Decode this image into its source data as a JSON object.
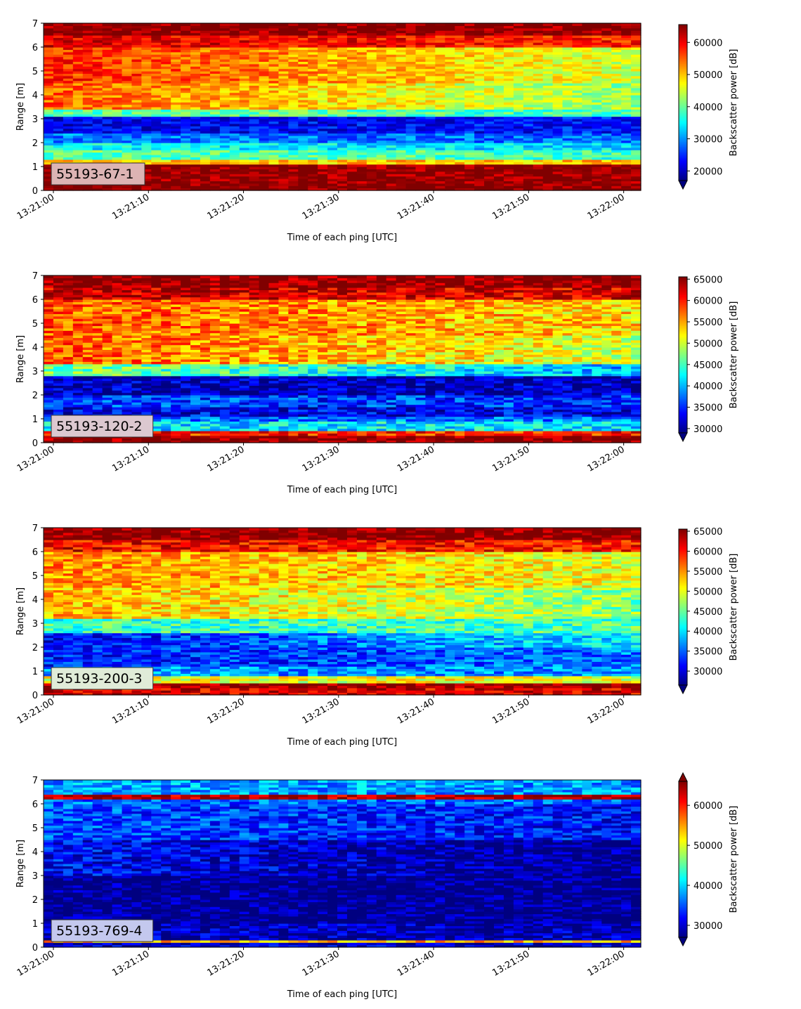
{
  "chart_data": [
    {
      "type": "heatmap",
      "label": "55193-67-1",
      "label_bg": "#dcb4b4",
      "xlabel": "Time of each ping [UTC]",
      "ylabel": "Range [m]",
      "xticks": [
        "13:21:00",
        "13:21:10",
        "13:21:20",
        "13:21:30",
        "13:21:40",
        "13:21:50",
        "13:22:00"
      ],
      "xlim": [
        "13:21:00",
        "13:22:00"
      ],
      "ylim": [
        0,
        7
      ],
      "yticks": [
        0,
        1,
        2,
        3,
        4,
        5,
        6,
        7
      ],
      "colorbar": {
        "label": "Backscatter power [dB]",
        "min": 17000,
        "max": 65535,
        "ticks": [
          20000,
          30000,
          40000,
          50000,
          60000
        ],
        "extend": "min"
      },
      "colormap": "jet",
      "profile": [
        {
          "range": [
            0.0,
            0.3
          ],
          "start": 65535,
          "end": 65535
        },
        {
          "range": [
            0.3,
            1.1
          ],
          "start": 65000,
          "end": 65000
        },
        {
          "range": [
            1.1,
            1.3
          ],
          "start": 50000,
          "end": 50000
        },
        {
          "range": [
            1.3,
            1.7
          ],
          "start": 40000,
          "end": 38000
        },
        {
          "range": [
            1.7,
            2.0
          ],
          "start": 35000,
          "end": 33000
        },
        {
          "range": [
            2.0,
            2.4
          ],
          "start": 29000,
          "end": 28000
        },
        {
          "range": [
            2.4,
            3.1
          ],
          "start": 22000,
          "end": 24000
        },
        {
          "range": [
            3.1,
            3.4
          ],
          "start": 40000,
          "end": 38000
        },
        {
          "range": [
            3.4,
            4.5
          ],
          "start": 55000,
          "end": 42000
        },
        {
          "range": [
            4.5,
            6.0
          ],
          "start": 58000,
          "end": 45000
        },
        {
          "range": [
            6.0,
            6.5
          ],
          "start": 61000,
          "end": 58000
        },
        {
          "range": [
            6.5,
            7.0
          ],
          "start": 65000,
          "end": 65000
        }
      ]
    },
    {
      "type": "heatmap",
      "label": "55193-120-2",
      "label_bg": "#dcc8d0",
      "xlabel": "Time of each ping [UTC]",
      "ylabel": "Range [m]",
      "xticks": [
        "13:21:00",
        "13:21:10",
        "13:21:20",
        "13:21:30",
        "13:21:40",
        "13:21:50",
        "13:22:00"
      ],
      "xlim": [
        "13:21:00",
        "13:22:00"
      ],
      "ylim": [
        0,
        7
      ],
      "yticks": [
        0,
        1,
        2,
        3,
        4,
        5,
        6,
        7
      ],
      "colorbar": {
        "label": "Backscatter power [dB]",
        "min": 29000,
        "max": 65535,
        "ticks": [
          30000,
          35000,
          40000,
          45000,
          50000,
          55000,
          60000,
          65000
        ],
        "extend": "min"
      },
      "colormap": "jet",
      "profile": [
        {
          "range": [
            0.0,
            0.3
          ],
          "start": 65535,
          "end": 65535
        },
        {
          "range": [
            0.3,
            0.5
          ],
          "start": 60000,
          "end": 60000
        },
        {
          "range": [
            0.5,
            0.9
          ],
          "start": 42000,
          "end": 42000
        },
        {
          "range": [
            0.9,
            1.1
          ],
          "start": 38000,
          "end": 38000
        },
        {
          "range": [
            1.1,
            1.5
          ],
          "start": 33000,
          "end": 33000
        },
        {
          "range": [
            1.5,
            2.0
          ],
          "start": 36000,
          "end": 35000
        },
        {
          "range": [
            2.0,
            2.8
          ],
          "start": 31000,
          "end": 31000
        },
        {
          "range": [
            2.8,
            3.3
          ],
          "start": 47000,
          "end": 40000
        },
        {
          "range": [
            3.3,
            4.5
          ],
          "start": 58000,
          "end": 50000
        },
        {
          "range": [
            4.5,
            6.0
          ],
          "start": 58000,
          "end": 53000
        },
        {
          "range": [
            6.0,
            6.5
          ],
          "start": 63000,
          "end": 62000
        },
        {
          "range": [
            6.5,
            7.0
          ],
          "start": 65535,
          "end": 65535
        }
      ]
    },
    {
      "type": "heatmap",
      "label": "55193-200-3",
      "label_bg": "#e0ecd8",
      "xlabel": "Time of each ping [UTC]",
      "ylabel": "Range [m]",
      "xticks": [
        "13:21:00",
        "13:21:10",
        "13:21:20",
        "13:21:30",
        "13:21:40",
        "13:21:50",
        "13:22:00"
      ],
      "xlim": [
        "13:21:00",
        "13:22:00"
      ],
      "ylim": [
        0,
        7
      ],
      "yticks": [
        0,
        1,
        2,
        3,
        4,
        5,
        6,
        7
      ],
      "colorbar": {
        "label": "Backscatter power [dB]",
        "min": 26500,
        "max": 65535,
        "ticks": [
          30000,
          35000,
          40000,
          45000,
          50000,
          55000,
          60000,
          65000
        ],
        "extend": "min"
      },
      "colormap": "jet",
      "profile": [
        {
          "range": [
            0.0,
            0.3
          ],
          "start": 62000,
          "end": 62000
        },
        {
          "range": [
            0.3,
            0.55
          ],
          "start": 65535,
          "end": 65535
        },
        {
          "range": [
            0.55,
            0.8
          ],
          "start": 50000,
          "end": 50000
        },
        {
          "range": [
            0.8,
            1.2
          ],
          "start": 37000,
          "end": 37000
        },
        {
          "range": [
            1.2,
            2.0
          ],
          "start": 32000,
          "end": 36000
        },
        {
          "range": [
            2.0,
            2.6
          ],
          "start": 31000,
          "end": 41000
        },
        {
          "range": [
            2.6,
            3.2
          ],
          "start": 43000,
          "end": 44000
        },
        {
          "range": [
            3.2,
            4.5
          ],
          "start": 54000,
          "end": 46000
        },
        {
          "range": [
            4.5,
            6.0
          ],
          "start": 55000,
          "end": 50000
        },
        {
          "range": [
            6.0,
            6.5
          ],
          "start": 61000,
          "end": 60000
        },
        {
          "range": [
            6.5,
            7.0
          ],
          "start": 65535,
          "end": 65535
        }
      ]
    },
    {
      "type": "heatmap",
      "label": "55193-769-4",
      "label_bg": "#c4c8ee",
      "xlabel": "Time of each ping [UTC]",
      "ylabel": "Range [m]",
      "xticks": [
        "13:21:00",
        "13:21:10",
        "13:21:20",
        "13:21:30",
        "13:21:40",
        "13:21:50",
        "13:22:00"
      ],
      "xlim": [
        "13:21:00",
        "13:22:00"
      ],
      "ylim": [
        0,
        7
      ],
      "yticks": [
        0,
        1,
        2,
        3,
        4,
        5,
        6,
        7
      ],
      "colorbar": {
        "label": "Backscatter power [dB]",
        "min": 27000,
        "max": 66000,
        "ticks": [
          30000,
          40000,
          50000,
          60000
        ],
        "extend": "both"
      },
      "colormap": "jet",
      "profile": [
        {
          "range": [
            0.0,
            0.2
          ],
          "start": 30000,
          "end": 30000
        },
        {
          "range": [
            0.2,
            0.3
          ],
          "start": 54000,
          "end": 54000
        },
        {
          "range": [
            0.3,
            1.0
          ],
          "start": 29000,
          "end": 29000
        },
        {
          "range": [
            1.0,
            3.0
          ],
          "start": 27500,
          "end": 27000
        },
        {
          "range": [
            3.0,
            4.5
          ],
          "start": 32000,
          "end": 27000
        },
        {
          "range": [
            4.5,
            6.0
          ],
          "start": 35000,
          "end": 32000
        },
        {
          "range": [
            6.0,
            6.25
          ],
          "start": 36000,
          "end": 36000
        },
        {
          "range": [
            6.25,
            6.45
          ],
          "start": 64000,
          "end": 64000
        },
        {
          "range": [
            6.45,
            7.0
          ],
          "start": 38000,
          "end": 38000
        }
      ]
    }
  ]
}
